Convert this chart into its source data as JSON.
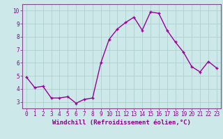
{
  "hours": [
    0,
    1,
    2,
    3,
    4,
    5,
    6,
    7,
    8,
    9,
    10,
    11,
    12,
    13,
    14,
    15,
    16,
    17,
    18,
    19,
    20,
    21,
    22,
    23
  ],
  "values": [
    4.9,
    4.1,
    4.2,
    3.3,
    3.3,
    3.4,
    2.9,
    3.2,
    3.3,
    6.0,
    7.8,
    8.6,
    9.1,
    9.5,
    8.5,
    9.9,
    9.8,
    8.5,
    7.6,
    6.8,
    5.7,
    5.3,
    6.1,
    5.6
  ],
  "line_color": "#990099",
  "marker": "+",
  "bg_color": "#cce8e8",
  "grid_color": "#aacccc",
  "border_color": "#884488",
  "xlabel": "Windchill (Refroidissement éolien,°C)",
  "xlim": [
    -0.5,
    23.5
  ],
  "ylim": [
    2.5,
    10.5
  ],
  "yticks": [
    3,
    4,
    5,
    6,
    7,
    8,
    9,
    10
  ],
  "xtick_labels": [
    "0",
    "1",
    "2",
    "3",
    "4",
    "5",
    "6",
    "7",
    "8",
    "9",
    "10",
    "11",
    "12",
    "13",
    "14",
    "15",
    "16",
    "17",
    "18",
    "19",
    "20",
    "21",
    "22",
    "23"
  ],
  "tick_color": "#880088",
  "xlabel_color": "#880088",
  "tick_fontsize": 5.5,
  "xlabel_fontsize": 6.5,
  "linewidth": 1.0,
  "markersize": 3.5,
  "markeredgewidth": 1.0
}
